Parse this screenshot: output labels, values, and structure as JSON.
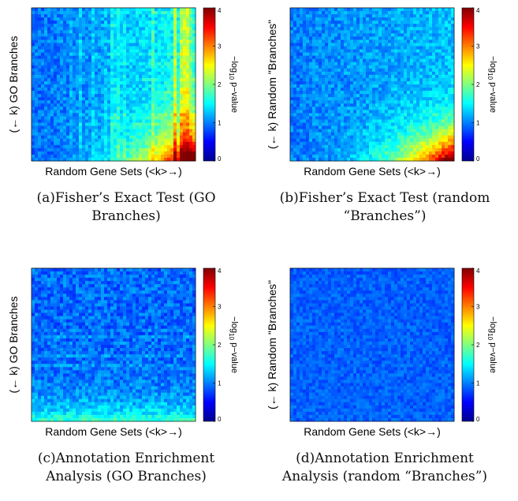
{
  "chart_data": [
    {
      "type": "heatmap",
      "panel": "a",
      "caption": "(a)Fisher’s Exact Test (GO Branches)",
      "caption_lines": [
        "(a)Fisher’s Exact Test (GO",
        "Branches)"
      ],
      "xlabel": "Random Gene Sets (<k>→)",
      "ylabel": "(← k) GO Branches",
      "colorbar_label": "−log10 p−value",
      "colorbar_ticks": [
        0,
        1,
        2,
        3,
        4
      ],
      "zlim": [
        0,
        4
      ],
      "pattern": "strong enrichment toward the bottom-right corner (large x, small y), stripes in right half"
    },
    {
      "type": "heatmap",
      "panel": "b",
      "caption": "(b)Fisher’s Exact Test (random “Branches”)",
      "caption_lines": [
        "(b)Fisher’s Exact Test (random",
        "“Branches”)"
      ],
      "xlabel": "Random Gene Sets (<k>→)",
      "ylabel": "(← k) Random \"Branches\"",
      "colorbar_label": "−log10 p−value",
      "colorbar_ticks": [
        0,
        1,
        2,
        3,
        4
      ],
      "zlim": [
        0,
        4
      ],
      "pattern": "smooth gradient reaching max in bottom-right corner"
    },
    {
      "type": "heatmap",
      "panel": "c",
      "caption": "(c)Annotation Enrichment Analysis (GO Branches)",
      "caption_lines": [
        "(c)Annotation Enrichment",
        "Analysis (GO Branches)"
      ],
      "xlabel": "Random Gene Sets (<k>→)",
      "ylabel": "(← k) GO Branches",
      "colorbar_label": "−log10 p−value",
      "colorbar_ticks": [
        0,
        1,
        2,
        3,
        4
      ],
      "zlim": [
        0,
        4
      ],
      "pattern": "mostly low values, faint horizontal stripes near bottom"
    },
    {
      "type": "heatmap",
      "panel": "d",
      "caption": "(d)Annotation Enrichment Analysis (random “Branches”)",
      "caption_lines": [
        "(d)Annotation Enrichment",
        "Analysis (random “Branches”)"
      ],
      "xlabel": "Random Gene Sets (<k>→)",
      "ylabel": "(← k) Random \"Branches\"",
      "colorbar_label": "−log10 p−value",
      "colorbar_ticks": [
        0,
        1,
        2,
        3,
        4
      ],
      "zlim": [
        0,
        4
      ],
      "pattern": "uniform low values"
    }
  ]
}
